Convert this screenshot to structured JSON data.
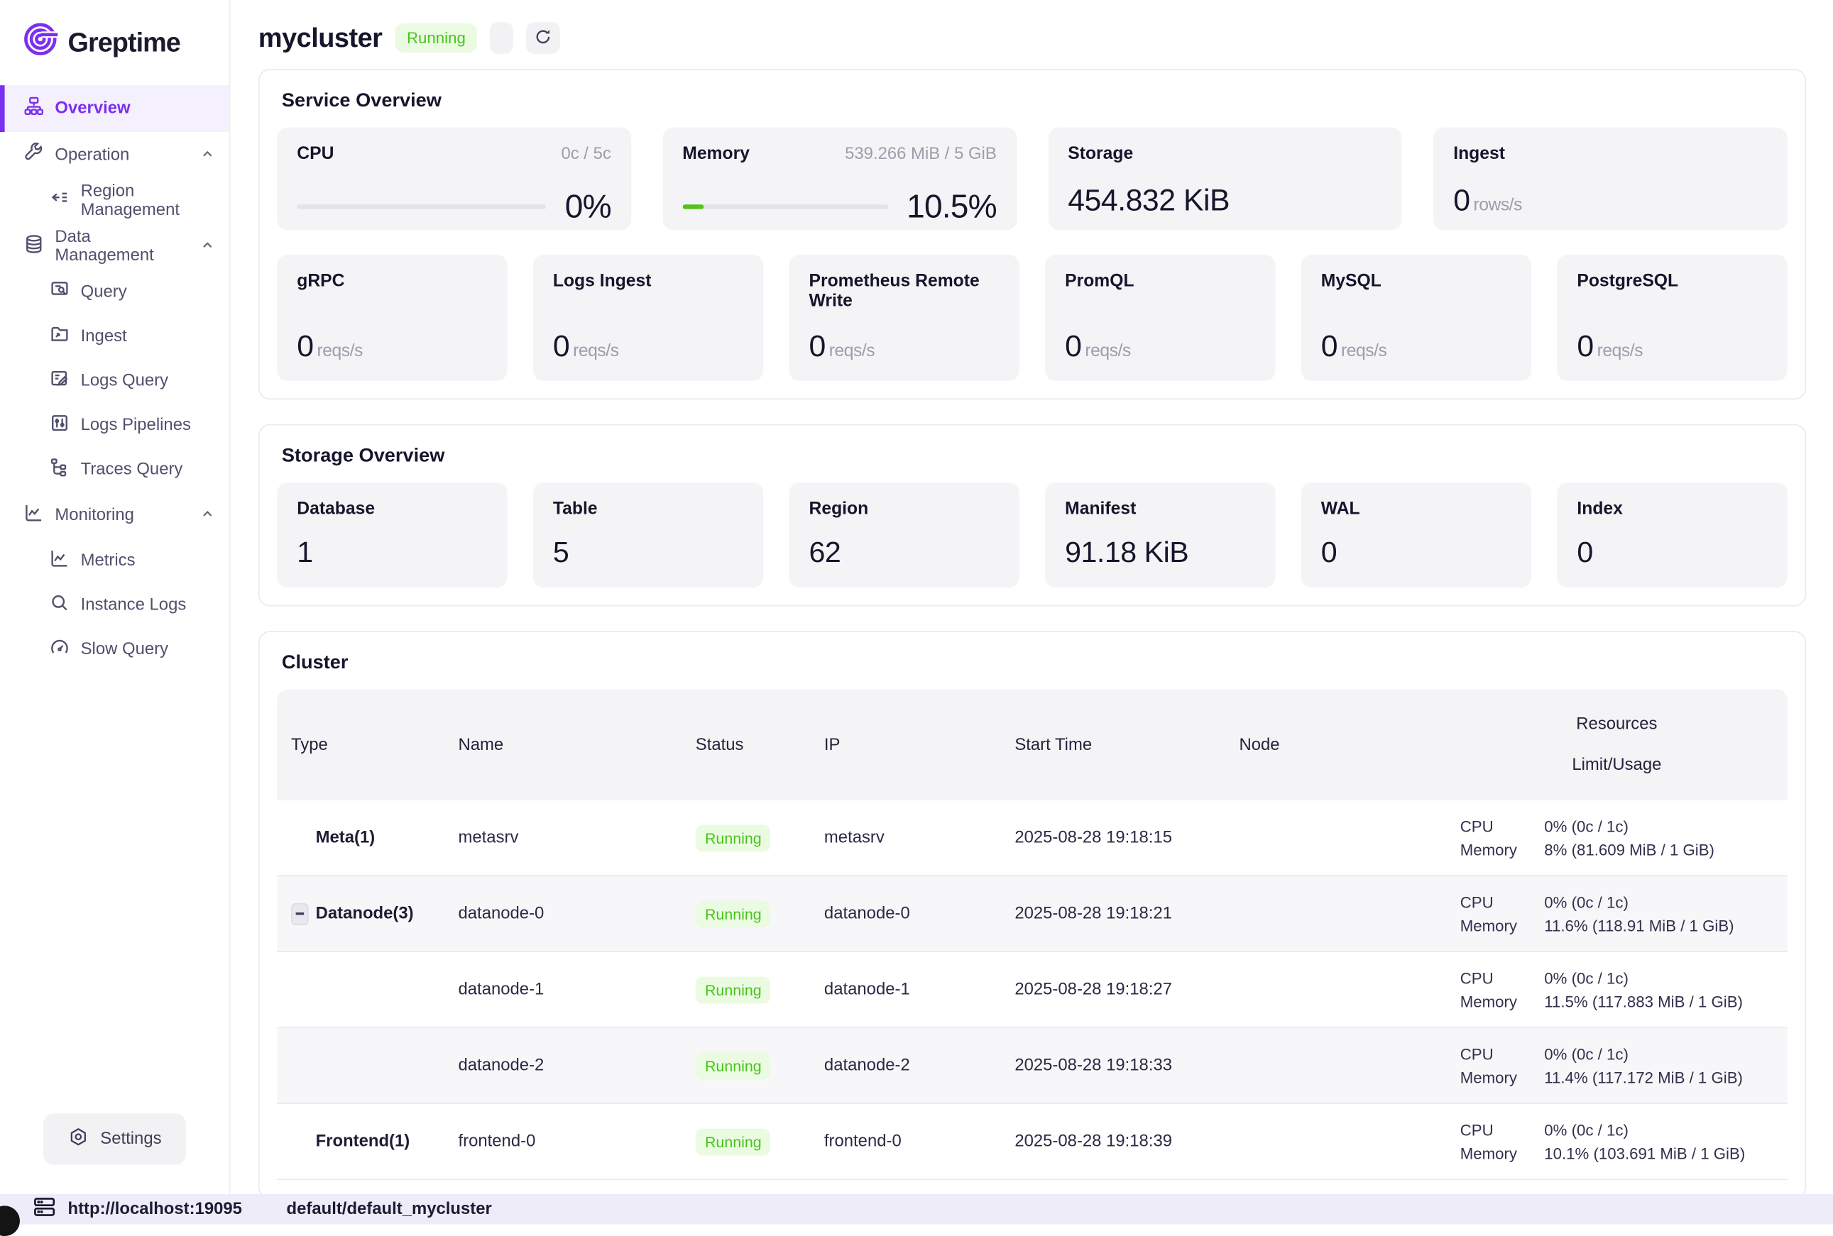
{
  "header": {
    "title": "mycluster",
    "status_badge": "Running"
  },
  "sidebar": {
    "brand": "Greptime",
    "items": [
      {
        "label": "Overview"
      },
      {
        "label": "Operation"
      },
      {
        "label": "Region Management"
      },
      {
        "label": "Data Management"
      },
      {
        "label": "Query"
      },
      {
        "label": "Ingest"
      },
      {
        "label": "Logs Query"
      },
      {
        "label": "Logs Pipelines"
      },
      {
        "label": "Traces Query"
      },
      {
        "label": "Monitoring"
      },
      {
        "label": "Metrics"
      },
      {
        "label": "Instance Logs"
      },
      {
        "label": "Slow Query"
      }
    ],
    "settings_label": "Settings"
  },
  "service_overview": {
    "title": "Service Overview",
    "cpu": {
      "label": "CPU",
      "limit": "0c / 5c",
      "percent": "0%",
      "progress": 0
    },
    "memory": {
      "label": "Memory",
      "limit": "539.266 MiB / 5 GiB",
      "percent": "10.5%",
      "progress": 10.5
    },
    "storage": {
      "label": "Storage",
      "value": "454.832 KiB"
    },
    "ingest": {
      "label": "Ingest",
      "value": "0",
      "unit": "rows/s"
    },
    "protocols": [
      {
        "label": "gRPC",
        "value": "0",
        "unit": "reqs/s"
      },
      {
        "label": "Logs Ingest",
        "value": "0",
        "unit": "reqs/s"
      },
      {
        "label": "Prometheus Remote Write",
        "value": "0",
        "unit": "reqs/s"
      },
      {
        "label": "PromQL",
        "value": "0",
        "unit": "reqs/s"
      },
      {
        "label": "MySQL",
        "value": "0",
        "unit": "reqs/s"
      },
      {
        "label": "PostgreSQL",
        "value": "0",
        "unit": "reqs/s"
      }
    ]
  },
  "storage_overview": {
    "title": "Storage Overview",
    "cards": [
      {
        "label": "Database",
        "value": "1"
      },
      {
        "label": "Table",
        "value": "5"
      },
      {
        "label": "Region",
        "value": "62"
      },
      {
        "label": "Manifest",
        "value": "91.18 KiB"
      },
      {
        "label": "WAL",
        "value": "0"
      },
      {
        "label": "Index",
        "value": "0"
      }
    ]
  },
  "cluster": {
    "title": "Cluster",
    "columns": {
      "type": "Type",
      "name": "Name",
      "status": "Status",
      "ip": "IP",
      "start_time": "Start Time",
      "node": "Node",
      "resources": "Resources",
      "limit_usage": "Limit/Usage"
    },
    "resource_labels": {
      "cpu": "CPU",
      "memory": "Memory"
    },
    "rows": [
      {
        "type": "Meta(1)",
        "name": "metasrv",
        "status": "Running",
        "ip": "metasrv",
        "start_time": "2025-08-28 19:18:15",
        "node": "",
        "cpu": "0% (0c / 1c)",
        "memory": "8% (81.609 MiB / 1 GiB)"
      },
      {
        "type": "Datanode(3)",
        "name": "datanode-0",
        "status": "Running",
        "ip": "datanode-0",
        "start_time": "2025-08-28 19:18:21",
        "node": "",
        "cpu": "0% (0c / 1c)",
        "memory": "11.6% (118.91 MiB / 1 GiB)"
      },
      {
        "type": "",
        "name": "datanode-1",
        "status": "Running",
        "ip": "datanode-1",
        "start_time": "2025-08-28 19:18:27",
        "node": "",
        "cpu": "0% (0c / 1c)",
        "memory": "11.5% (117.883 MiB / 1 GiB)"
      },
      {
        "type": "",
        "name": "datanode-2",
        "status": "Running",
        "ip": "datanode-2",
        "start_time": "2025-08-28 19:18:33",
        "node": "",
        "cpu": "0% (0c / 1c)",
        "memory": "11.4% (117.172 MiB / 1 GiB)"
      },
      {
        "type": "Frontend(1)",
        "name": "frontend-0",
        "status": "Running",
        "ip": "frontend-0",
        "start_time": "2025-08-28 19:18:39",
        "node": "",
        "cpu": "0% (0c / 1c)",
        "memory": "10.1% (103.691 MiB / 1 GiB)"
      }
    ]
  },
  "status_bar": {
    "url": "http://localhost:19095",
    "database": "default/default_mycluster"
  },
  "colors": {
    "accent_purple": "#7b2ff0",
    "status_green": "#52c41a",
    "badge_green_bg": "#eafbe1",
    "card_gray": "#f4f4f6",
    "statusbar_lavender": "#edecf8"
  }
}
